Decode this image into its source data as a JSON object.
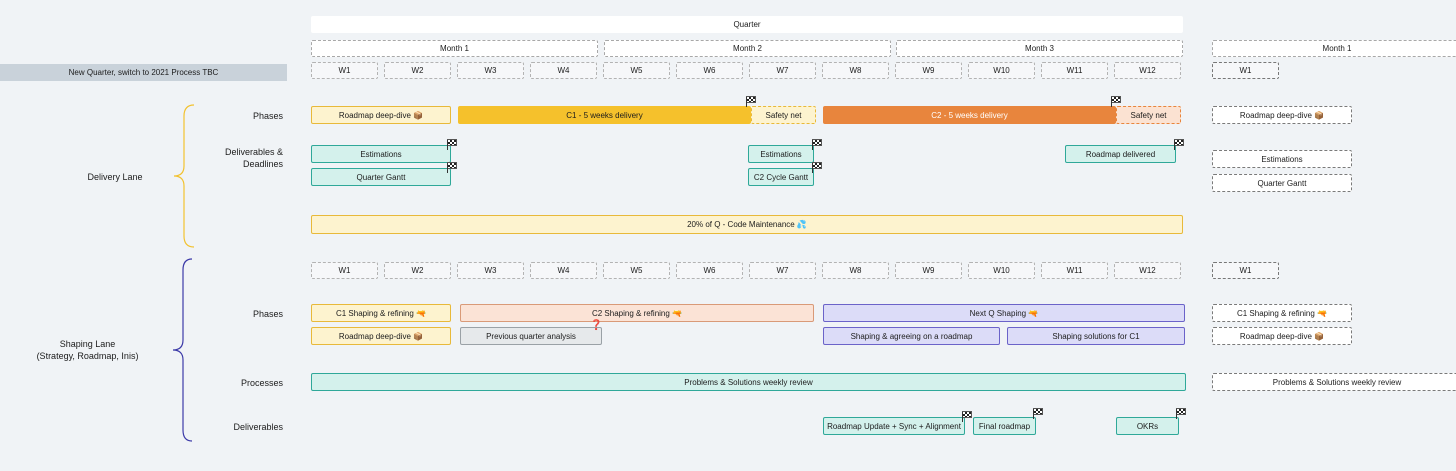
{
  "banner": "New Quarter, switch to 2021 Process TBC",
  "header": {
    "quarter": "Quarter",
    "months": [
      "Month 1",
      "Month 2",
      "Month 3"
    ],
    "next_month": "Month 1",
    "weeks": [
      "W1",
      "W2",
      "W3",
      "W4",
      "W5",
      "W6",
      "W7",
      "W8",
      "W9",
      "W10",
      "W11",
      "W12"
    ],
    "next_week": "W1"
  },
  "delivery_lane": {
    "title": "Delivery Lane",
    "phases_label": "Phases",
    "deliverables_label_1": "Deliverables &",
    "deliverables_label_2": "Deadlines",
    "roadmap_deep_dive": "Roadmap deep-dive 📦",
    "c1_delivery": "C1 - 5 weeks delivery",
    "safety_net_1": "Safety net",
    "c2_delivery": "C2 - 5 weeks delivery",
    "safety_net_2": "Safety net",
    "estimations_1": "Estimations",
    "quarter_gantt": "Quarter Gantt",
    "estimations_2": "Estimations",
    "c2_cycle_gantt": "C2 Cycle Gantt",
    "roadmap_delivered": "Roadmap delivered",
    "code_maintenance": "20% of Q - Code Maintenance 💦",
    "next": {
      "roadmap_deep_dive": "Roadmap deep-dive 📦",
      "estimations": "Estimations",
      "quarter_gantt": "Quarter Gantt"
    }
  },
  "shaping_lane": {
    "title_1": "Shaping Lane",
    "title_2": "(Strategy, Roadmap, Inis)",
    "phases_label": "Phases",
    "processes_label": "Processes",
    "deliverables_label": "Deliverables",
    "c1_shaping": "C1 Shaping & refining 🔫",
    "c2_shaping": "C2 Shaping & refining 🔫",
    "next_q_shaping": "Next Q Shaping 🔫",
    "roadmap_deep_dive": "Roadmap deep-dive 📦",
    "previous_quarter": "Previous quarter analysis",
    "question_mark": "❓",
    "shaping_agreeing": "Shaping & agreeing on a roadmap",
    "shaping_solutions": "Shaping solutions for C1",
    "problems_solutions": "Problems & Solutions weekly review",
    "roadmap_update": "Roadmap Update + Sync + Alignment",
    "final_roadmap": "Final roadmap",
    "okrs": "OKRs",
    "next": {
      "c1_shaping": "C1 Shaping & refining 🔫",
      "roadmap_deep_dive": "Roadmap deep-dive 📦",
      "problems_solutions": "Problems & Solutions weekly review"
    }
  },
  "colors": {
    "background": "#f0f3f6",
    "delivery_brace": "#f2c230",
    "shaping_brace": "#3c3aa8",
    "gold": "#f5c12c",
    "orange": "#e8853d",
    "teal": "#2fa899",
    "purple": "#6b63c9"
  },
  "icons": [
    "finish-flag-icon",
    "package-icon",
    "droplets-icon",
    "pistol-icon",
    "question-mark-icon"
  ]
}
